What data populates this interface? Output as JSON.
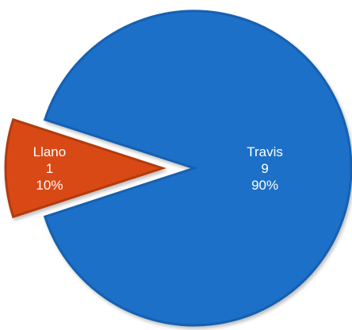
{
  "chart_data": {
    "type": "pie",
    "categories": [
      "Travis",
      "Llano"
    ],
    "values": [
      9,
      1
    ],
    "percent_labels": [
      "90%",
      "10%"
    ],
    "colors": [
      "#1a6fc7",
      "#d94a14"
    ],
    "exploded": "Llano",
    "legend": "none"
  }
}
